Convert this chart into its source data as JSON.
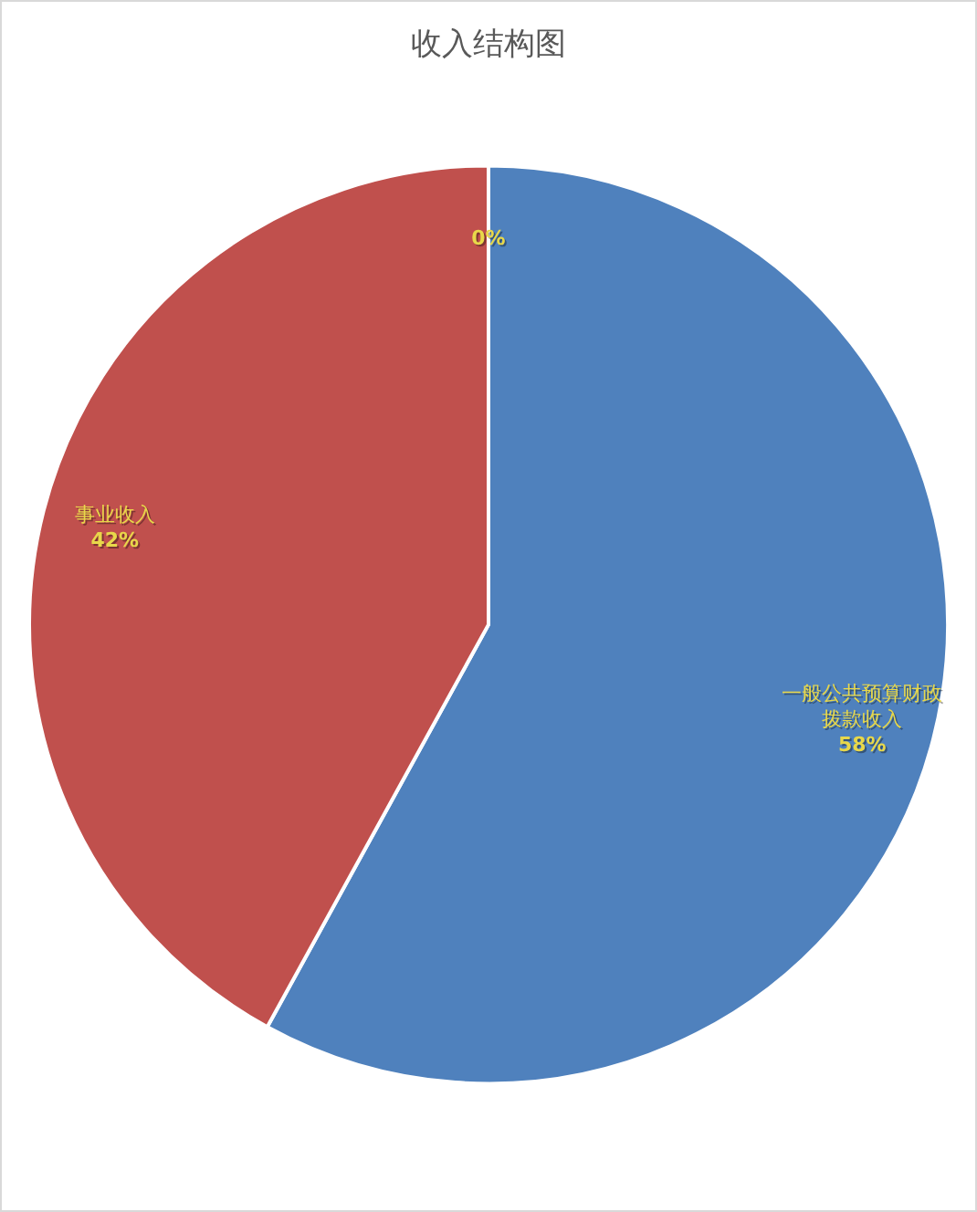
{
  "chart_data": {
    "type": "pie",
    "title": "收入结构图",
    "categories": [
      "一般公共预算财政拨款收入",
      "事业收入",
      null
    ],
    "values": [
      58,
      42,
      0
    ],
    "value_labels": [
      "58%",
      "42%",
      "0%"
    ],
    "colors": [
      "#4f81bd",
      "#c0504d",
      "#9bbb59"
    ],
    "legend": false
  }
}
